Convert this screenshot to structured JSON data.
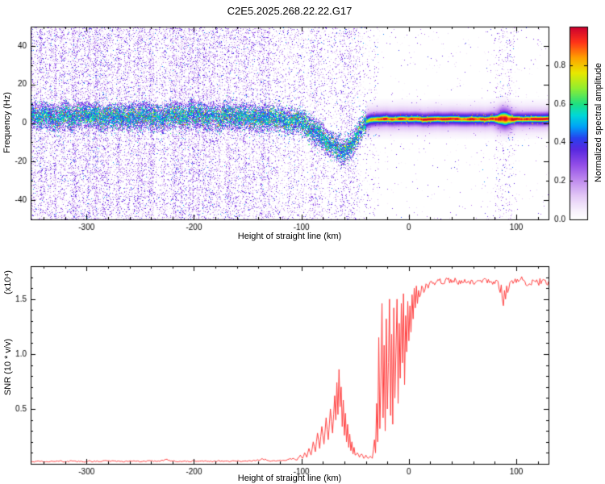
{
  "title": "C2E5.2025.268.22.22.G17",
  "chart_data": [
    {
      "type": "heatmap",
      "title": "",
      "xlabel": "Height of straight line (km)",
      "ylabel": "Frequency (Hz)",
      "xlim": [
        -352,
        130
      ],
      "ylim": [
        -50,
        50
      ],
      "xticks": [
        -300,
        -200,
        -100,
        0,
        100
      ],
      "yticks": [
        40,
        20,
        0,
        -20,
        -40
      ],
      "grid": false,
      "colorbar": {
        "label": "Normalized spectral amplitude",
        "ticks": [
          0.0,
          0.2,
          0.4,
          0.6,
          0.8
        ],
        "range": [
          0,
          1
        ]
      },
      "colormap": [
        [
          0.0,
          "#ffffff"
        ],
        [
          0.05,
          "#f6eefc"
        ],
        [
          0.12,
          "#e3c8f6"
        ],
        [
          0.2,
          "#c08cee"
        ],
        [
          0.28,
          "#9450e8"
        ],
        [
          0.36,
          "#5a28e0"
        ],
        [
          0.42,
          "#2840ee"
        ],
        [
          0.48,
          "#00a0f8"
        ],
        [
          0.54,
          "#00d8d8"
        ],
        [
          0.6,
          "#20e080"
        ],
        [
          0.68,
          "#90ee30"
        ],
        [
          0.76,
          "#e8e800"
        ],
        [
          0.84,
          "#ffa000"
        ],
        [
          0.92,
          "#ff3318"
        ],
        [
          1.0,
          "#cc0030"
        ]
      ],
      "ridge": {
        "name": "doppler-ridge",
        "points": [
          [
            -352,
            3
          ],
          [
            -340,
            4.2
          ],
          [
            -330,
            2.6
          ],
          [
            -320,
            4
          ],
          [
            -310,
            3
          ],
          [
            -300,
            4.6
          ],
          [
            -290,
            3.2
          ],
          [
            -280,
            2.2
          ],
          [
            -270,
            4
          ],
          [
            -260,
            3
          ],
          [
            -250,
            4.4
          ],
          [
            -240,
            3
          ],
          [
            -230,
            2.4
          ],
          [
            -220,
            4
          ],
          [
            -210,
            3.2
          ],
          [
            -200,
            4.4
          ],
          [
            -190,
            3.4
          ],
          [
            -180,
            2.6
          ],
          [
            -170,
            4
          ],
          [
            -160,
            3
          ],
          [
            -150,
            3.6
          ],
          [
            -140,
            2.6
          ],
          [
            -130,
            3.4
          ],
          [
            -120,
            2.2
          ],
          [
            -115,
            1.6
          ],
          [
            -110,
            1
          ],
          [
            -105,
            0.4
          ],
          [
            -100,
            -0.6
          ],
          [
            -95,
            -2
          ],
          [
            -90,
            -3.8
          ],
          [
            -85,
            -5.8
          ],
          [
            -80,
            -8
          ],
          [
            -75,
            -10.4
          ],
          [
            -70,
            -12.4
          ],
          [
            -65,
            -13.8
          ],
          [
            -60,
            -14.6
          ],
          [
            -57,
            -13.6
          ],
          [
            -54,
            -12
          ],
          [
            -51,
            -9.6
          ],
          [
            -48,
            -6.8
          ],
          [
            -45,
            -3.8
          ],
          [
            -42,
            -1.2
          ],
          [
            -40,
            0.4
          ],
          [
            -38,
            1.2
          ],
          [
            -35,
            1.8
          ],
          [
            -30,
            2
          ],
          [
            0,
            2
          ],
          [
            60,
            2
          ],
          [
            90,
            2
          ],
          [
            130,
            2
          ]
        ]
      }
    },
    {
      "type": "line",
      "title": "",
      "xlabel": "Height of straight line (km)",
      "ylabel": "SNR (10 * v/v)",
      "ylabel_scale": "(x10⁴)",
      "xlim": [
        -352,
        130
      ],
      "ylim": [
        0,
        1.8
      ],
      "xticks": [
        -300,
        -200,
        -100,
        0,
        100
      ],
      "yticks": [
        0.5,
        1.0,
        1.5
      ],
      "grid": false,
      "color": "#ff4040",
      "series": [
        {
          "name": "snr",
          "points": [
            [
              -352,
              0.02
            ],
            [
              -344,
              0.024
            ],
            [
              -336,
              0.018
            ],
            [
              -328,
              0.025
            ],
            [
              -320,
              0.02
            ],
            [
              -312,
              0.026
            ],
            [
              -304,
              0.019
            ],
            [
              -296,
              0.024
            ],
            [
              -288,
              0.02
            ],
            [
              -280,
              0.027
            ],
            [
              -272,
              0.02
            ],
            [
              -264,
              0.023
            ],
            [
              -256,
              0.028
            ],
            [
              -248,
              0.021
            ],
            [
              -240,
              0.026
            ],
            [
              -232,
              0.022
            ],
            [
              -226,
              0.04
            ],
            [
              -222,
              0.025
            ],
            [
              -214,
              0.02
            ],
            [
              -206,
              0.026
            ],
            [
              -198,
              0.021
            ],
            [
              -190,
              0.027
            ],
            [
              -182,
              0.022
            ],
            [
              -174,
              0.028
            ],
            [
              -166,
              0.022
            ],
            [
              -158,
              0.026
            ],
            [
              -150,
              0.023
            ],
            [
              -142,
              0.03
            ],
            [
              -136,
              0.045
            ],
            [
              -130,
              0.027
            ],
            [
              -122,
              0.03
            ],
            [
              -114,
              0.032
            ],
            [
              -108,
              0.05
            ],
            [
              -104,
              0.035
            ],
            [
              -101,
              0.08
            ],
            [
              -99,
              0.05
            ],
            [
              -97,
              0.1
            ],
            [
              -95,
              0.06
            ],
            [
              -93,
              0.14
            ],
            [
              -91,
              0.08
            ],
            [
              -89,
              0.2
            ],
            [
              -87,
              0.11
            ],
            [
              -85,
              0.28
            ],
            [
              -83,
              0.14
            ],
            [
              -81,
              0.34
            ],
            [
              -79,
              0.18
            ],
            [
              -77,
              0.42
            ],
            [
              -75,
              0.22
            ],
            [
              -73,
              0.5
            ],
            [
              -71,
              0.28
            ],
            [
              -69,
              0.62
            ],
            [
              -68,
              0.4
            ],
            [
              -67,
              0.74
            ],
            [
              -66,
              0.45
            ],
            [
              -65,
              0.86
            ],
            [
              -64,
              0.52
            ],
            [
              -63,
              0.7
            ],
            [
              -62,
              0.34
            ],
            [
              -61,
              0.58
            ],
            [
              -60,
              0.26
            ],
            [
              -59,
              0.46
            ],
            [
              -58,
              0.2
            ],
            [
              -57,
              0.36
            ],
            [
              -56,
              0.15
            ],
            [
              -55,
              0.27
            ],
            [
              -54,
              0.12
            ],
            [
              -53,
              0.2
            ],
            [
              -52,
              0.09
            ],
            [
              -51,
              0.15
            ],
            [
              -50,
              0.08
            ],
            [
              -48,
              0.1
            ],
            [
              -46,
              0.06
            ],
            [
              -44,
              0.09
            ],
            [
              -42,
              0.05
            ],
            [
              -40,
              0.08
            ],
            [
              -38,
              0.05
            ],
            [
              -36,
              0.07
            ],
            [
              -34,
              0.05
            ],
            [
              -32,
              0.22
            ],
            [
              -31,
              0.1
            ],
            [
              -30,
              0.55
            ],
            [
              -29,
              0.2
            ],
            [
              -28,
              1.15
            ],
            [
              -27,
              0.32
            ],
            [
              -26,
              0.75
            ],
            [
              -25,
              1.46
            ],
            [
              -24,
              0.42
            ],
            [
              -23,
              1.08
            ],
            [
              -22,
              0.3
            ],
            [
              -21,
              1.32
            ],
            [
              -20,
              0.5
            ],
            [
              -19,
              0.92
            ],
            [
              -18,
              1.5
            ],
            [
              -17,
              0.44
            ],
            [
              -16,
              1.18
            ],
            [
              -15,
              0.36
            ],
            [
              -14,
              1.42
            ],
            [
              -13,
              0.6
            ],
            [
              -12,
              1.02
            ],
            [
              -11,
              1.5
            ],
            [
              -10,
              0.55
            ],
            [
              -9,
              1.28
            ],
            [
              -8,
              0.78
            ],
            [
              -7,
              1.46
            ],
            [
              -6,
              0.92
            ],
            [
              -5,
              1.55
            ],
            [
              -4,
              0.72
            ],
            [
              -3,
              1.35
            ],
            [
              -2,
              1.02
            ],
            [
              -1,
              1.48
            ],
            [
              0,
              1.12
            ],
            [
              1,
              1.44
            ],
            [
              2,
              1.2
            ],
            [
              3,
              1.54
            ],
            [
              4,
              1.32
            ],
            [
              5,
              1.6
            ],
            [
              6,
              1.42
            ],
            [
              7,
              1.62
            ],
            [
              8,
              1.46
            ],
            [
              9,
              1.58
            ],
            [
              10,
              1.52
            ],
            [
              12,
              1.62
            ],
            [
              14,
              1.56
            ],
            [
              16,
              1.64
            ],
            [
              18,
              1.6
            ],
            [
              20,
              1.66
            ],
            [
              24,
              1.63
            ],
            [
              28,
              1.67
            ],
            [
              32,
              1.64
            ],
            [
              36,
              1.68
            ],
            [
              40,
              1.65
            ],
            [
              44,
              1.67
            ],
            [
              48,
              1.64
            ],
            [
              52,
              1.68
            ],
            [
              56,
              1.66
            ],
            [
              60,
              1.64
            ],
            [
              64,
              1.67
            ],
            [
              68,
              1.65
            ],
            [
              72,
              1.68
            ],
            [
              76,
              1.66
            ],
            [
              80,
              1.64
            ],
            [
              83,
              1.66
            ],
            [
              85,
              1.56
            ],
            [
              86,
              1.63
            ],
            [
              87,
              1.5
            ],
            [
              88,
              1.44
            ],
            [
              89,
              1.58
            ],
            [
              90,
              1.5
            ],
            [
              91,
              1.62
            ],
            [
              92,
              1.56
            ],
            [
              94,
              1.65
            ],
            [
              96,
              1.67
            ],
            [
              100,
              1.65
            ],
            [
              104,
              1.68
            ],
            [
              108,
              1.66
            ],
            [
              112,
              1.64
            ],
            [
              116,
              1.67
            ],
            [
              120,
              1.65
            ],
            [
              124,
              1.67
            ],
            [
              128,
              1.64
            ],
            [
              130,
              1.66
            ]
          ]
        }
      ]
    }
  ]
}
